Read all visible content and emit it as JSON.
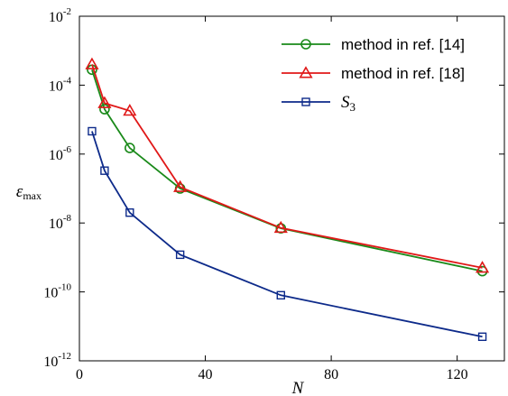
{
  "chart_data": {
    "type": "line",
    "xlabel": "N",
    "ylabel": {
      "main": "ε",
      "sub": "max"
    },
    "xlim": [
      0,
      135
    ],
    "ylim": [
      1e-12,
      0.01
    ],
    "yscale": "log",
    "grid": false,
    "legend_position": "top-right",
    "x_ticks": [
      0,
      40,
      80,
      120
    ],
    "x_tick_labels": [
      "0",
      "40",
      "80",
      "120"
    ],
    "y_ticks": [
      {
        "value": 1e-12,
        "base": "10",
        "exp": "-12"
      },
      {
        "value": 1e-10,
        "base": "10",
        "exp": "-10"
      },
      {
        "value": 1e-08,
        "base": "10",
        "exp": "-8"
      },
      {
        "value": 1e-06,
        "base": "10",
        "exp": "-6"
      },
      {
        "value": 0.0001,
        "base": "10",
        "exp": "-4"
      },
      {
        "value": 0.01,
        "base": "10",
        "exp": "-2"
      }
    ],
    "series": [
      {
        "name": "method in ref. [14]",
        "color": "#1a8a1a",
        "marker": "circle",
        "x": [
          4,
          8,
          16,
          32,
          64,
          128
        ],
        "y": [
          0.00028,
          2e-05,
          1.5e-06,
          1e-07,
          7e-09,
          4e-10
        ]
      },
      {
        "name": "method in ref. [18]",
        "color": "#e01818",
        "marker": "triangle",
        "x": [
          4,
          8,
          16,
          32,
          64,
          128
        ],
        "y": [
          0.0004,
          3e-05,
          1.8e-05,
          1.1e-07,
          7.2e-09,
          5e-10
        ]
      },
      {
        "name": "S",
        "name_sub": "3",
        "color": "#0d2a8a",
        "marker": "square",
        "x": [
          4,
          8,
          16,
          32,
          64,
          128
        ],
        "y": [
          4.6e-06,
          3.3e-07,
          2e-08,
          1.2e-09,
          8e-11,
          5e-12
        ]
      }
    ]
  }
}
